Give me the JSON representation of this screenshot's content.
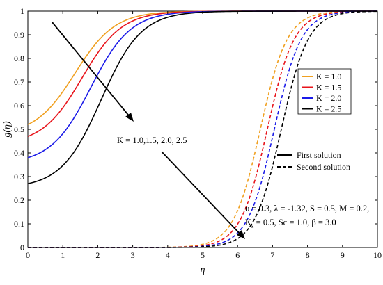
{
  "chart_data": {
    "type": "line",
    "xlabel": "η",
    "ylabel": "g(η)",
    "xlim": [
      0,
      10
    ],
    "ylim": [
      0,
      1
    ],
    "x_ticks": [
      "0",
      "1",
      "2",
      "3",
      "4",
      "5",
      "6",
      "7",
      "8",
      "9",
      "10"
    ],
    "y_ticks": [
      "0",
      "0.1",
      "0.2",
      "0.3",
      "0.4",
      "0.5",
      "0.6",
      "0.7",
      "0.8",
      "0.9",
      "1"
    ],
    "grid": false,
    "legend_position": "right",
    "series": [
      {
        "name": "K = 1.0",
        "color": "#f0a020",
        "first": {
          "x0": 1.35,
          "y0": 0.52
        },
        "second": {
          "center": 6.65
        }
      },
      {
        "name": "K = 1.5",
        "color": "#e8141b",
        "first": {
          "x0": 1.55,
          "y0": 0.47
        },
        "second": {
          "center": 6.85
        }
      },
      {
        "name": "K = 2.0",
        "color": "#1b1be8",
        "first": {
          "x0": 1.8,
          "y0": 0.38
        },
        "second": {
          "center": 7.05
        }
      },
      {
        "name": "K = 2.5",
        "color": "#000000",
        "first": {
          "x0": 2.1,
          "y0": 0.27
        },
        "second": {
          "center": 7.25
        }
      }
    ],
    "linestyle_legend": [
      {
        "label": "First solution",
        "style": "solid"
      },
      {
        "label": "Second solution",
        "style": "dashed"
      }
    ],
    "annotations": {
      "k_label": "K = 1.0,1.5, 2.0, 2.5",
      "params_line1": "υ = 0.3, λ = -1.32, S = 0.5, M = 0.2,",
      "params_line2": "K",
      "params_sub": "s",
      "params_line2_rest": " = 0.5, Sc = 1.0, β = 3.0"
    }
  }
}
